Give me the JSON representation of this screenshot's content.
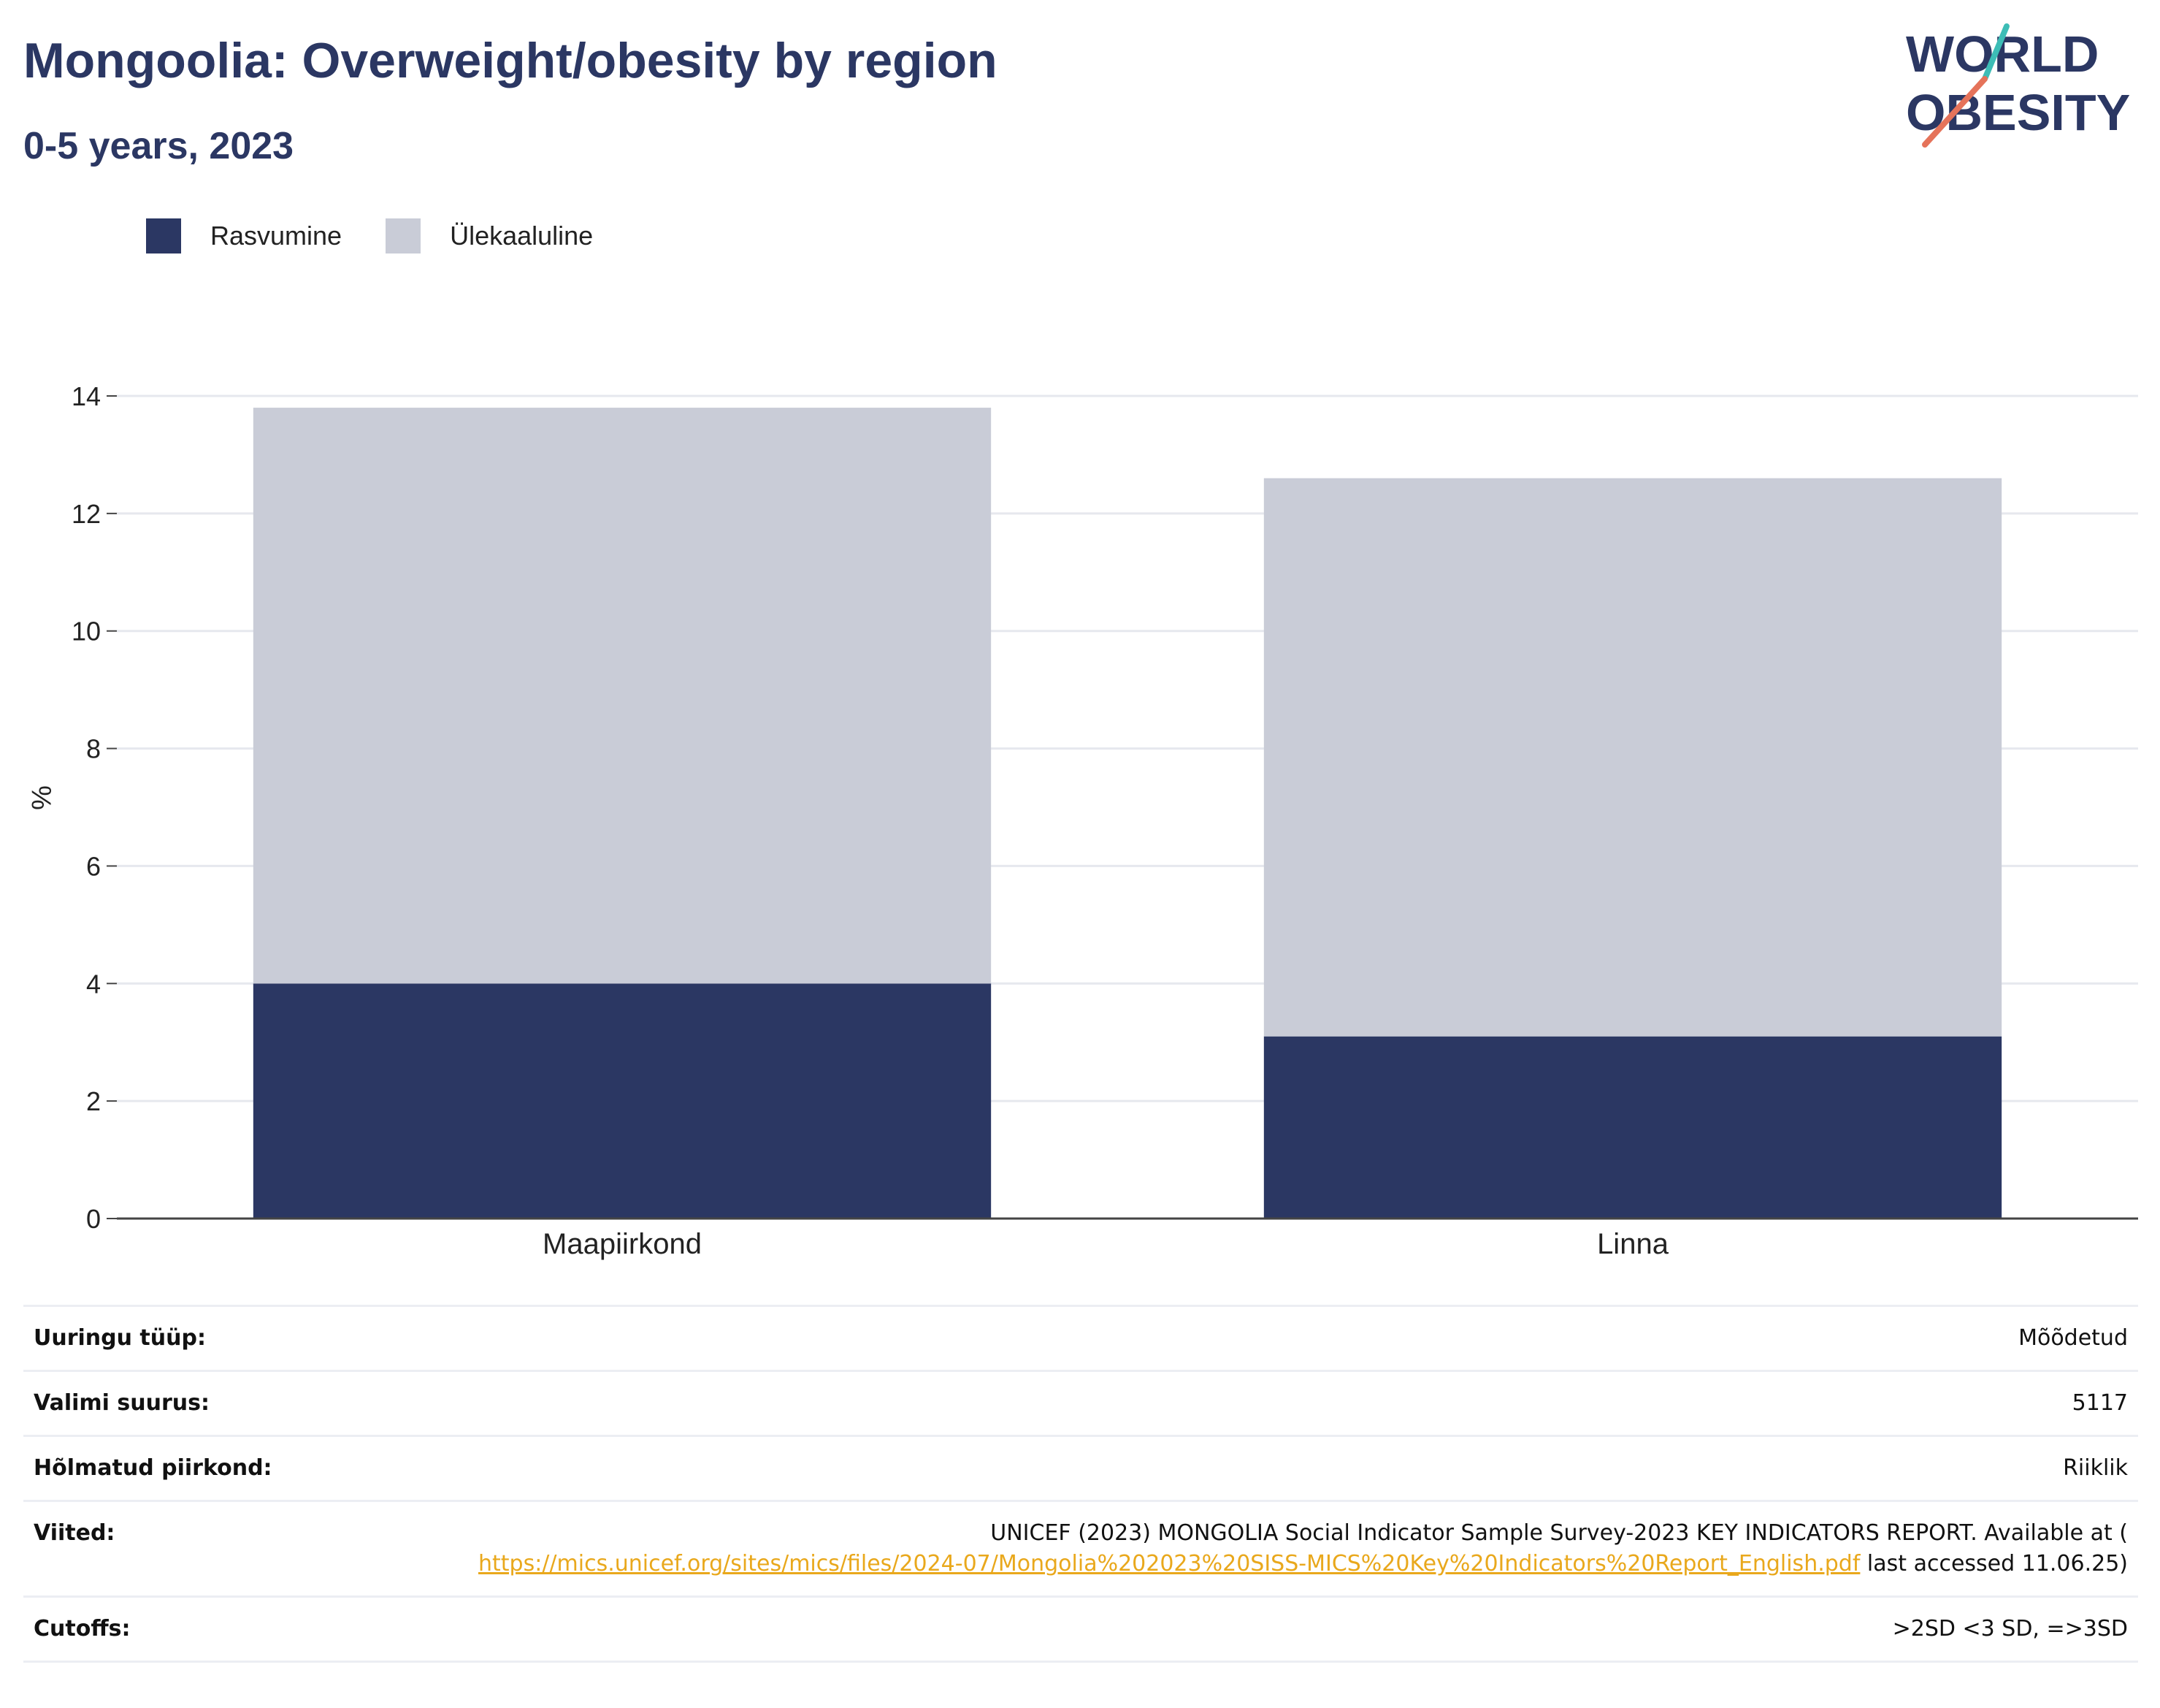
{
  "header": {
    "title": "Mongoolia: Overweight/obesity by region",
    "subtitle": "0-5 years, 2023",
    "logo": {
      "line1": "WORLD",
      "line2": "OBESITY",
      "colors": {
        "text": "#2b3763",
        "slash_top": "#3dbdb6",
        "slash_bottom": "#e5735a"
      }
    }
  },
  "legend": [
    {
      "label": "Rasvumine",
      "color": "#2b3763"
    },
    {
      "label": "Ülekaaluline",
      "color": "#c9ccd7"
    }
  ],
  "chart_data": {
    "type": "bar",
    "stacked": true,
    "categories": [
      "Maapiirkond",
      "Linna"
    ],
    "series": [
      {
        "name": "Rasvumine",
        "values": [
          4.0,
          3.1
        ],
        "color": "#2b3763"
      },
      {
        "name": "Ülekaaluline",
        "values": [
          9.8,
          9.5
        ],
        "color": "#c9ccd7"
      }
    ],
    "ylabel": "%",
    "ylim": [
      0,
      14
    ],
    "yticks": [
      0,
      2,
      4,
      6,
      8,
      10,
      12,
      14
    ],
    "grid": true,
    "legend_position": "top-left"
  },
  "info": {
    "survey_type": {
      "label": "Uuringu tüüp:",
      "value": "Mõõdetud"
    },
    "sample_size": {
      "label": "Valimi suurus:",
      "value": "5117"
    },
    "area": {
      "label": "Hõlmatud piirkond:",
      "value": "Riiklik"
    },
    "references": {
      "label": "Viited:",
      "text_before": "UNICEF (2023) MONGOLIA Social Indicator Sample Survey-2023 KEY INDICATORS REPORT. Available at (",
      "url": "https://mics.unicef.org/sites/mics/files/2024-07/Mongolia%202023%20SISS-MICS%20Key%20Indicators%20Report_English.pdf",
      "text_after": " last accessed 11.06.25)"
    },
    "cutoffs": {
      "label": "Cutoffs:",
      "value": ">2SD <3 SD, =>3SD"
    }
  }
}
